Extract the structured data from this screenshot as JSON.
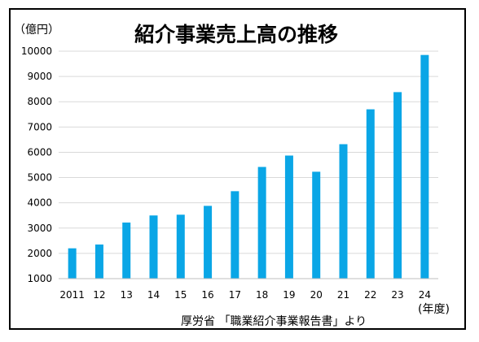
{
  "chart_data": {
    "type": "bar",
    "title": "紹介事業売上高の推移",
    "y_unit": "（億円）",
    "x_unit": "(年度)",
    "source": "厚労省 「職業紹介事業報告書」より",
    "categories": [
      "2011",
      "12",
      "13",
      "14",
      "15",
      "16",
      "17",
      "18",
      "19",
      "20",
      "21",
      "22",
      "23",
      "24"
    ],
    "values": [
      2200,
      2350,
      3220,
      3500,
      3530,
      3880,
      4460,
      5420,
      5870,
      5230,
      6320,
      7700,
      8380,
      9850
    ],
    "ylim": [
      1000,
      10000
    ],
    "yticks": [
      1000,
      2000,
      3000,
      4000,
      5000,
      6000,
      7000,
      8000,
      9000,
      10000
    ],
    "grid": true,
    "bar_color": "#0AA6E6",
    "grid_color": "#D9D9D9",
    "axis_color": "#BFBFBF"
  }
}
